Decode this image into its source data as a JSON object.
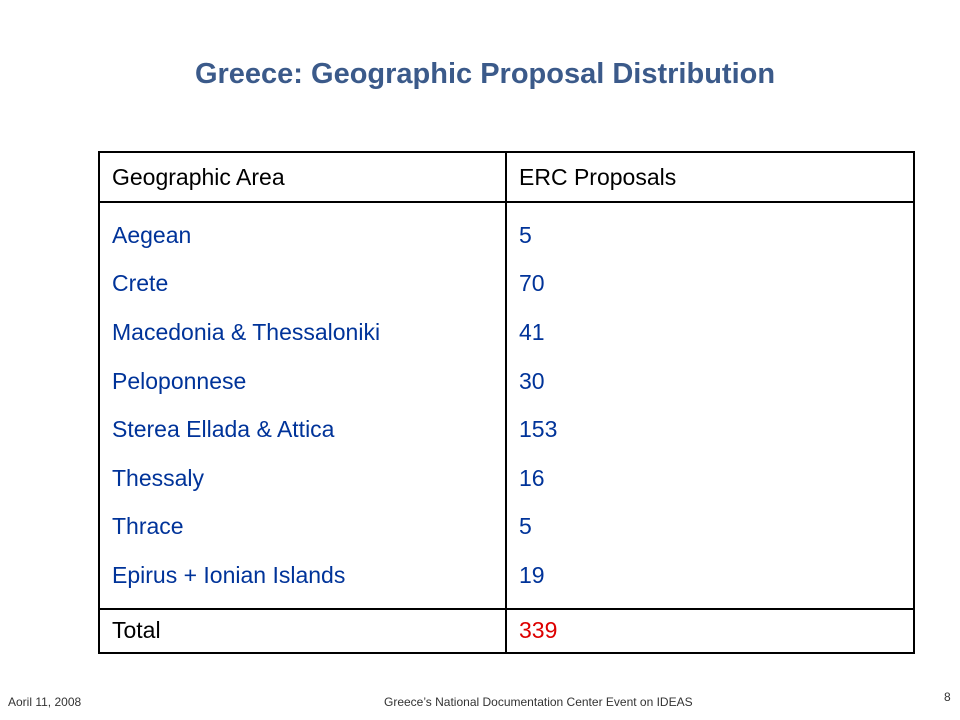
{
  "slide": {
    "title": "Greece: Geographic Proposal Distribution"
  },
  "table": {
    "headers": [
      "Geographic Area",
      "ERC Proposals"
    ],
    "rows": [
      {
        "area": "Aegean",
        "proposals": "5"
      },
      {
        "area": "Crete",
        "proposals": "70"
      },
      {
        "area": "Macedonia & Thessaloniki",
        "proposals": "41"
      },
      {
        "area": "Peloponnese",
        "proposals": "30"
      },
      {
        "area": "Sterea Ellada & Attica",
        "proposals": "153"
      },
      {
        "area": "Thessaly",
        "proposals": "16"
      },
      {
        "area": "Thrace",
        "proposals": "5"
      },
      {
        "area": "Epirus + Ionian Islands",
        "proposals": "19"
      }
    ],
    "total": {
      "label": "Total",
      "value": "339"
    }
  },
  "footer": {
    "date": "Aoril 11, 2008",
    "event": "Greece’s National Documentation Center Event on IDEAS",
    "page": "8"
  },
  "colors": {
    "title": "#3b5a8a",
    "row_text": "#003399",
    "total_value": "#dd0000"
  }
}
